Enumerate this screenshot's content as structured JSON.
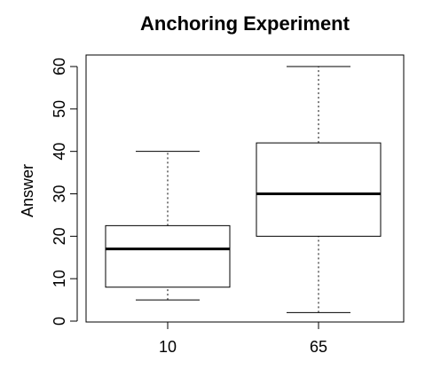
{
  "chart_data": {
    "type": "boxplot",
    "title": "Anchoring Experiment",
    "xlabel": "",
    "ylabel": "Answer",
    "ylim": [
      0,
      60
    ],
    "yticks": [
      0,
      10,
      20,
      30,
      40,
      50,
      60
    ],
    "categories": [
      "10",
      "65"
    ],
    "boxes": [
      {
        "category": "10",
        "whisker_low": 5,
        "q1": 8,
        "median": 17,
        "q3": 22.5,
        "whisker_high": 40
      },
      {
        "category": "65",
        "whisker_low": 2,
        "q1": 20,
        "median": 30,
        "q3": 42,
        "whisker_high": 60
      }
    ],
    "grid": false,
    "colors": {
      "box_fill": "#ffffff",
      "line": "#000000"
    }
  }
}
